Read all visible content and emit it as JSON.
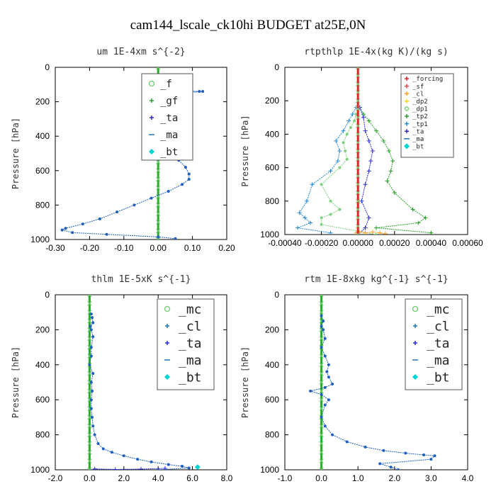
{
  "suptitle": "cam144_lscale_ck10hi  BUDGET at25E,0N",
  "chart_data": [
    {
      "type": "line",
      "title": "um  1E-4xm s^{-2}",
      "ylabel": "Pressure [hPa]",
      "xlim": [
        -0.3,
        0.2
      ],
      "xticks": [
        "-0.30",
        "-0.20",
        "-0.10",
        "0.00",
        "0.10",
        "0.20"
      ],
      "xtick_values": [
        -0.3,
        -0.2,
        -0.1,
        0.0,
        0.1,
        0.2
      ],
      "ylim": [
        0,
        1000
      ],
      "yticks": [
        "0",
        "200",
        "400",
        "600",
        "800",
        "1000"
      ],
      "ytick_values": [
        0,
        200,
        400,
        600,
        800,
        1000
      ],
      "legend": {
        "position": "top-right",
        "font_size": 14,
        "entries": [
          {
            "label": "_f",
            "color": "#7fd17f",
            "marker": "circle"
          },
          {
            "label": "_gf",
            "color": "#2ca02c",
            "marker": "plus"
          },
          {
            "label": "_ta",
            "color": "#2b2bd6",
            "marker": "plus"
          },
          {
            "label": "_ma",
            "color": "#1f77b4",
            "marker": "dash"
          },
          {
            "label": "_bt",
            "color": "#00d5d5",
            "marker": "diamond"
          }
        ]
      },
      "series": [
        {
          "name": "_gf",
          "color": "#22b022",
          "marker": "x",
          "x": [
            0,
            0,
            0,
            0,
            0,
            0,
            0,
            0,
            0,
            0,
            0,
            0,
            0,
            0,
            0,
            0,
            0,
            0,
            0,
            0,
            0
          ],
          "y": [
            0,
            50,
            100,
            150,
            200,
            250,
            300,
            350,
            400,
            450,
            500,
            550,
            600,
            650,
            700,
            750,
            800,
            850,
            900,
            950,
            1000
          ]
        },
        {
          "name": "_ta",
          "color": "#1f5fbf",
          "marker": "dot",
          "x": [
            -0.005,
            -0.01,
            0.02,
            0.05,
            0.08,
            0.12,
            0.13,
            0.07,
            -0.02,
            -0.03,
            -0.01,
            0.03,
            0.05,
            0.03,
            0.01,
            0.0,
            -0.01,
            0.01,
            0.03,
            0.05,
            0.06,
            0.08,
            0.09,
            0.09,
            0.07,
            0.03,
            -0.02,
            -0.07,
            -0.12,
            -0.17,
            -0.22,
            -0.27,
            -0.28,
            -0.25,
            -0.15,
            0.0,
            0.05
          ],
          "y": [
            100,
            120,
            130,
            135,
            138,
            140,
            140,
            150,
            160,
            180,
            200,
            230,
            260,
            290,
            320,
            350,
            380,
            420,
            460,
            500,
            540,
            580,
            620,
            650,
            680,
            720,
            760,
            800,
            840,
            880,
            910,
            935,
            945,
            960,
            970,
            985,
            995
          ]
        }
      ]
    },
    {
      "type": "line",
      "title": "rtpthlp  1E-4x(kg K)/(kg s)",
      "ylabel": "Pressure [hPa]",
      "xlim": [
        -0.0004,
        0.0006
      ],
      "xticks": [
        "-0.00040",
        "-0.00020",
        "0.00000",
        "0.00020",
        "0.00040",
        "0.00060"
      ],
      "xtick_values": [
        -0.0004,
        -0.0002,
        0.0,
        0.0002,
        0.0004,
        0.0006
      ],
      "ylim": [
        0,
        1000
      ],
      "yticks": [
        "0",
        "200",
        "400",
        "600",
        "800",
        "1000"
      ],
      "ytick_values": [
        0,
        200,
        400,
        600,
        800,
        1000
      ],
      "legend": {
        "position": "top-right",
        "font_size": 9,
        "entries": [
          {
            "label": "_forcing",
            "color": "#d62728",
            "marker": "plus"
          },
          {
            "label": "_sf",
            "color": "#ff4444",
            "marker": "plus"
          },
          {
            "label": "_cl",
            "color": "#ff9f1c",
            "marker": "plus"
          },
          {
            "label": "_dp2",
            "color": "#ffd21c",
            "marker": "plus"
          },
          {
            "label": "_dp1",
            "color": "#7fd17f",
            "marker": "circle"
          },
          {
            "label": "_tp2",
            "color": "#2ca02c",
            "marker": "plus"
          },
          {
            "label": "_tp1",
            "color": "#2b8cd6",
            "marker": "plus"
          },
          {
            "label": "_ta",
            "color": "#2b2bd6",
            "marker": "plus"
          },
          {
            "label": "_ma",
            "color": "#1f77b4",
            "marker": "dash"
          },
          {
            "label": "_bt",
            "color": "#00d5d5",
            "marker": "diamond"
          }
        ]
      },
      "series": [
        {
          "name": "_dp1",
          "color": "#7fd17f",
          "marker": "dot",
          "x": [
            -1e-05,
            -2e-05,
            -4e-05,
            -6e-05,
            -8e-05,
            -7e-05,
            -6e-05,
            -0.0001,
            -0.0002,
            -0.00015,
            -0.0001,
            -0.00015,
            -0.0002,
            -0.0002,
            0.0,
            0.0001
          ],
          "y": [
            280,
            320,
            360,
            400,
            450,
            500,
            550,
            600,
            700,
            800,
            850,
            880,
            900,
            940,
            980,
            1000
          ]
        },
        {
          "name": "_tp2",
          "color": "#2ca02c",
          "marker": "plus",
          "x": [
            1e-05,
            3e-05,
            6e-05,
            0.0001,
            0.00014,
            0.00017,
            0.00019,
            0.00018,
            0.00016,
            0.0002,
            0.0003,
            0.00037,
            0.00033,
            0.0001,
            0.0004
          ],
          "y": [
            240,
            280,
            320,
            380,
            440,
            500,
            560,
            620,
            680,
            750,
            850,
            900,
            930,
            960,
            990
          ]
        },
        {
          "name": "_tp1",
          "color": "#2b8cd6",
          "marker": "plus",
          "x": [
            -1e-05,
            -3e-05,
            -5e-05,
            -8e-05,
            -0.00012,
            -0.0001,
            -0.00011,
            -0.00015,
            -0.00025,
            -0.00028,
            -0.00032,
            -0.00029,
            -0.00026,
            -0.00033,
            -0.00015
          ],
          "y": [
            240,
            280,
            320,
            380,
            440,
            500,
            560,
            620,
            700,
            800,
            870,
            900,
            930,
            960,
            990
          ]
        },
        {
          "name": "_ta",
          "color": "#2b2bd6",
          "marker": "plus",
          "x": [
            1e-05,
            3e-05,
            4e-05,
            6e-05,
            8e-05,
            7e-05,
            6e-05,
            4e-05,
            2e-05,
            6e-05,
            4e-05,
            0.0
          ],
          "y": [
            240,
            300,
            380,
            440,
            500,
            560,
            620,
            700,
            800,
            900,
            960,
            1000
          ]
        },
        {
          "name": "_cl",
          "color": "#ff9f1c",
          "marker": "plus",
          "x": [
            -1e-05,
            1e-05,
            4e-05,
            8e-05,
            0.00012,
            0.00015
          ],
          "y": [
            990,
            985,
            990,
            985,
            990,
            995
          ]
        },
        {
          "name": "_forcing",
          "color": "#d62728",
          "marker": "x",
          "x": [
            0,
            0,
            0,
            0,
            0,
            0,
            0,
            0,
            0,
            0,
            0,
            0,
            0,
            0,
            0,
            0,
            0,
            0,
            0,
            0,
            0
          ],
          "y": [
            0,
            50,
            100,
            150,
            200,
            250,
            300,
            350,
            400,
            450,
            500,
            550,
            600,
            650,
            700,
            750,
            800,
            850,
            900,
            950,
            1000
          ]
        }
      ]
    },
    {
      "type": "line",
      "title": "thlm  1E-5xK s^{-1}",
      "ylabel": "Pressure [hPa]",
      "xlim": [
        -2.0,
        8.0
      ],
      "xticks": [
        "-2.0",
        "0.0",
        "2.0",
        "4.0",
        "6.0",
        "8.0"
      ],
      "xtick_values": [
        -2.0,
        0.0,
        2.0,
        4.0,
        6.0,
        8.0
      ],
      "ylim": [
        0,
        1000
      ],
      "yticks": [
        "0",
        "200",
        "400",
        "600",
        "800",
        "1000"
      ],
      "ytick_values": [
        0,
        200,
        400,
        600,
        800,
        1000
      ],
      "legend": {
        "position": "top-right",
        "font_size": 18,
        "entries": [
          {
            "label": "_mc",
            "color": "#7fd17f",
            "marker": "circle"
          },
          {
            "label": "_cl",
            "color": "#1f77b4",
            "marker": "plus"
          },
          {
            "label": "_ta",
            "color": "#2b2bd6",
            "marker": "plus"
          },
          {
            "label": "_ma",
            "color": "#1f77b4",
            "marker": "dash"
          },
          {
            "label": "_bt",
            "color": "#00d5d5",
            "marker": "diamond"
          }
        ]
      },
      "series": [
        {
          "name": "_mc",
          "color": "#22b022",
          "marker": "x",
          "x": [
            0,
            0,
            0,
            0,
            0,
            0,
            0,
            0,
            0,
            0,
            0,
            0,
            0,
            0,
            0,
            0,
            0,
            0,
            0,
            0,
            0
          ],
          "y": [
            0,
            50,
            100,
            150,
            200,
            250,
            300,
            350,
            400,
            450,
            500,
            550,
            600,
            650,
            700,
            750,
            800,
            850,
            900,
            950,
            1000
          ]
        },
        {
          "name": "_cl",
          "color": "#1f5fbf",
          "marker": "dot",
          "x": [
            0.1,
            0.15,
            0.2,
            0.05,
            0.1,
            0.2,
            0.1,
            0.1,
            0.0,
            0.2,
            0.1,
            0.15,
            0.1,
            0.1,
            0.15,
            0.2,
            0.3,
            0.5,
            0.8,
            1.3,
            2.0,
            2.8,
            3.6,
            4.6,
            5.4,
            5.8,
            4.0
          ],
          "y": [
            110,
            130,
            160,
            180,
            200,
            240,
            300,
            350,
            400,
            450,
            500,
            550,
            600,
            650,
            700,
            750,
            800,
            850,
            880,
            900,
            920,
            940,
            955,
            970,
            980,
            990,
            1000
          ]
        },
        {
          "name": "_bt",
          "color": "#00d5d5",
          "marker": "diamond",
          "x": [
            6.3
          ],
          "y": [
            985
          ]
        },
        {
          "name": "_ta",
          "color": "#2b2bd6",
          "marker": "plus",
          "x": [
            0.3,
            1.5,
            3.0,
            4.4
          ],
          "y": [
            995,
            998,
            996,
            992
          ]
        }
      ]
    },
    {
      "type": "line",
      "title": "rtm  1E-8xkg kg^{-1} s^{-1}",
      "ylabel": "Pressure [hPa]",
      "xlim": [
        -1.0,
        4.0
      ],
      "xticks": [
        "-1.0",
        "0.0",
        "1.0",
        "2.0",
        "3.0",
        "4.0"
      ],
      "xtick_values": [
        -1.0,
        0.0,
        1.0,
        2.0,
        3.0,
        4.0
      ],
      "ylim": [
        0,
        1000
      ],
      "yticks": [
        "0",
        "200",
        "400",
        "600",
        "800",
        "1000"
      ],
      "ytick_values": [
        0,
        200,
        400,
        600,
        800,
        1000
      ],
      "legend": {
        "position": "top-right",
        "font_size": 18,
        "entries": [
          {
            "label": "_mc",
            "color": "#7fd17f",
            "marker": "circle"
          },
          {
            "label": "_cl",
            "color": "#1f77b4",
            "marker": "plus"
          },
          {
            "label": "_ta",
            "color": "#2b2bd6",
            "marker": "plus"
          },
          {
            "label": "_ma",
            "color": "#1f77b4",
            "marker": "dash"
          },
          {
            "label": "_bt",
            "color": "#00d5d5",
            "marker": "diamond"
          }
        ]
      },
      "series": [
        {
          "name": "_mc",
          "color": "#22b022",
          "marker": "x",
          "x": [
            0,
            0,
            0,
            0,
            0,
            0,
            0,
            0,
            0,
            0,
            0,
            0,
            0,
            0,
            0,
            0,
            0,
            0,
            0,
            0,
            0
          ],
          "y": [
            0,
            50,
            100,
            150,
            200,
            250,
            300,
            350,
            400,
            450,
            500,
            550,
            600,
            650,
            700,
            750,
            800,
            850,
            900,
            950,
            1000
          ]
        },
        {
          "name": "_cl",
          "color": "#1f5fbf",
          "marker": "dot",
          "x": [
            0.0,
            0.05,
            0.0,
            0.05,
            0.1,
            0.0,
            0.1,
            0.2,
            0.15,
            0.2,
            0.3,
            0.1,
            -0.3,
            0.0,
            0.2,
            0.1,
            0.0,
            0.1,
            0.3,
            0.7,
            1.2,
            1.7,
            2.3,
            2.8,
            3.1,
            3.0,
            1.6,
            1.9,
            2.1
          ],
          "y": [
            120,
            150,
            180,
            200,
            250,
            300,
            350,
            400,
            440,
            470,
            510,
            530,
            550,
            570,
            600,
            630,
            700,
            750,
            800,
            840,
            870,
            890,
            905,
            915,
            920,
            940,
            965,
            985,
            1000
          ]
        }
      ]
    }
  ]
}
